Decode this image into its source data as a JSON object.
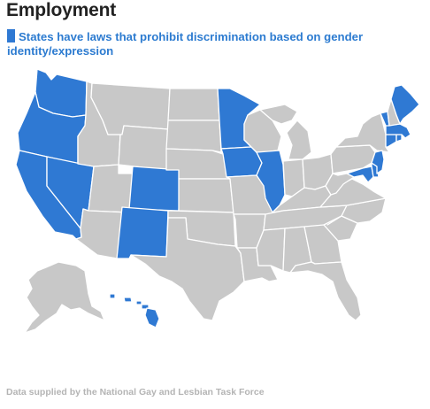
{
  "header": {
    "title": "Employment",
    "legend": "States have laws that prohibit discrimination based on gender identity/expression"
  },
  "footer": {
    "source": "Data supplied by the National Gay and Lesbian Task Force"
  },
  "colors": {
    "highlight": "#2f79d3",
    "other": "#c8c8c8",
    "border": "#ffffff"
  },
  "states_with_protection": [
    "WA",
    "OR",
    "CA",
    "NV",
    "CO",
    "NM",
    "MN",
    "IA",
    "IL",
    "ME",
    "VT",
    "MA",
    "RI",
    "CT",
    "NJ",
    "MD",
    "DE",
    "HI"
  ]
}
